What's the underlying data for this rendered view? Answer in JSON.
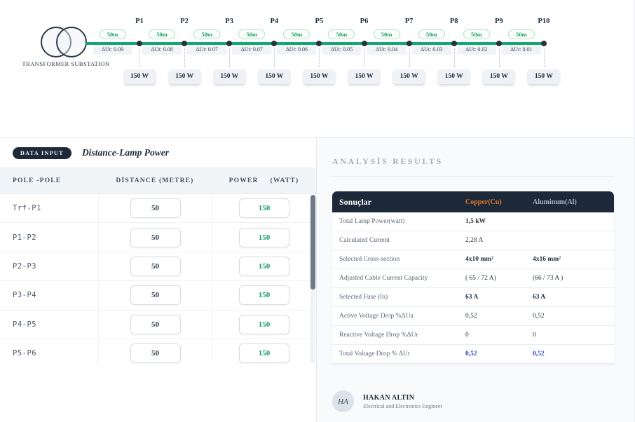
{
  "diagram": {
    "transformer_label": "TRANSFORMER SUBSTATION",
    "poles": [
      "P1",
      "P2",
      "P3",
      "P4",
      "P5",
      "P6",
      "P7",
      "P8",
      "P9",
      "P10"
    ],
    "segments": [
      {
        "length": "50m",
        "drop": "ΔUt: 0.09"
      },
      {
        "length": "50m",
        "drop": "ΔUt: 0.08"
      },
      {
        "length": "50m",
        "drop": "ΔUt: 0.07"
      },
      {
        "length": "50m",
        "drop": "ΔUt: 0.07"
      },
      {
        "length": "50m",
        "drop": "ΔUt: 0.06"
      },
      {
        "length": "50m",
        "drop": "ΔUt: 0.05"
      },
      {
        "length": "50m",
        "drop": "ΔUt: 0.04"
      },
      {
        "length": "50m",
        "drop": "ΔUt: 0.03"
      },
      {
        "length": "50m",
        "drop": "ΔUt: 0.02"
      },
      {
        "length": "50m",
        "drop": "ΔUt: 0.01"
      }
    ],
    "lamp_power": "150 W"
  },
  "data_input": {
    "badge": "DATA INPUT",
    "title": "Distance-Lamp Power",
    "columns": {
      "pole": "POLE -POLE",
      "distance": "DİSTANCE (METRE)",
      "power_word": "POWER",
      "power_unit": "(WATT)"
    },
    "rows": [
      {
        "pair": "Trf-P1",
        "distance": "50",
        "power": "150"
      },
      {
        "pair": "P1-P2",
        "distance": "50",
        "power": "150"
      },
      {
        "pair": "P2-P3",
        "distance": "50",
        "power": "150"
      },
      {
        "pair": "P3-P4",
        "distance": "50",
        "power": "150"
      },
      {
        "pair": "P4-P5",
        "distance": "50",
        "power": "150"
      },
      {
        "pair": "P5-P6",
        "distance": "50",
        "power": "150"
      }
    ]
  },
  "results": {
    "heading": "ANALYSİS RESULTS",
    "table": {
      "header": {
        "label": "Sonuçlar",
        "cu": "Copper(Cu)",
        "al": "Aluminum(Al)"
      },
      "rows": [
        {
          "label": "Total Lamp Power(watt)",
          "cu": "1,5 kW",
          "al": "",
          "style": "bold"
        },
        {
          "label": "Calculated Current",
          "cu": "2,28 A",
          "al": "",
          "style": "normal"
        },
        {
          "label": "Selected Cross-section",
          "cu": "4x10 mm²",
          "al": "4x16 mm²",
          "style": "bold"
        },
        {
          "label": "Adjusted Cable Current Capacity",
          "cu": "( 65 / 72 A)",
          "al": "(66 / 73 A )",
          "style": "normal"
        },
        {
          "label": "Selected Fuse (In)",
          "cu": "63 A",
          "al": "63 A",
          "style": "bold"
        },
        {
          "label": "Active Voltage Drop %ΔUa",
          "cu": "0,52",
          "al": "0,52",
          "style": "normal"
        },
        {
          "label": "Reactive Voltage Drop %ΔUr",
          "cu": "0",
          "al": "0",
          "style": "normal"
        },
        {
          "label": "Total Voltage Drop % ΔUt",
          "cu": "0,52",
          "al": "0,52",
          "style": "blue"
        }
      ]
    },
    "footer": {
      "avatar": "HA",
      "name": "HAKAN ALTIN",
      "role": "Electrical and Electronics Engineer"
    }
  },
  "colors": {
    "line_green": "#17a673",
    "badge_green_text": "#1f9d66",
    "header_navy": "#1d2939",
    "copper": "#e0762a",
    "aluminum": "#a9b4c0",
    "total_blue": "#2b44c4"
  }
}
